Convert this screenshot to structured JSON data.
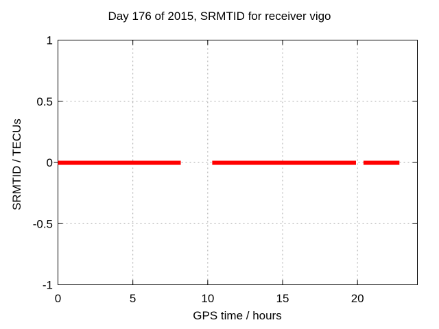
{
  "page": {
    "background_color": "#ffffff",
    "text_color": "#000000"
  },
  "chart_data": {
    "type": "line",
    "title": "Day 176 of 2015, SRMTID for receiver vigo",
    "xlabel": "GPS time / hours",
    "ylabel": "SRMTID / TECUs",
    "xlim": [
      0,
      24
    ],
    "ylim": [
      -1,
      1
    ],
    "xticks": [
      0,
      5,
      10,
      15,
      20
    ],
    "xtick_labels": [
      "0",
      "5",
      "10",
      "15",
      "20"
    ],
    "yticks": [
      1,
      0.5,
      0,
      -0.5,
      -1
    ],
    "ytick_labels": [
      "1",
      "0.5",
      "0",
      "-0.5",
      "-1"
    ],
    "grid": {
      "on": true,
      "style": "dotted",
      "color": "#a8a8a8",
      "x_lines": [
        5,
        10,
        15,
        20
      ],
      "y_lines": [
        0.5,
        0,
        -0.5
      ]
    },
    "axis_color": "#000000",
    "legend": "none",
    "series": [
      {
        "name": "SRMTID",
        "color": "#ff0000",
        "line_width": 6,
        "y_value": 0,
        "segments_hours": [
          [
            0.0,
            8.2
          ],
          [
            10.3,
            19.9
          ],
          [
            20.4,
            22.8
          ]
        ]
      }
    ]
  }
}
